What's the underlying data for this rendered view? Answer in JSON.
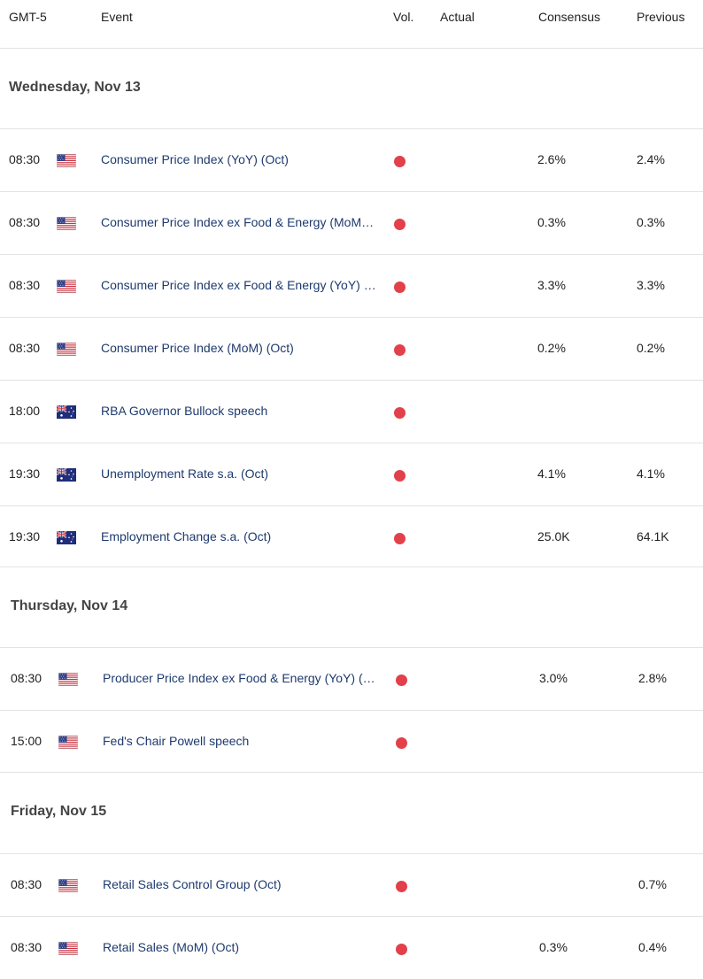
{
  "header": {
    "timezone": "GMT-5",
    "event": "Event",
    "vol": "Vol.",
    "actual": "Actual",
    "consensus": "Consensus",
    "previous": "Previous"
  },
  "days": [
    {
      "label": "Wednesday, Nov 13",
      "events": [
        {
          "time": "08:30",
          "flag": "us",
          "name": "Consumer Price Index (YoY) (Oct)",
          "actual": "",
          "consensus": "2.6%",
          "previous": "2.4%"
        },
        {
          "time": "08:30",
          "flag": "us",
          "name": "Consumer Price Index ex Food & Energy (MoM…",
          "actual": "",
          "consensus": "0.3%",
          "previous": "0.3%"
        },
        {
          "time": "08:30",
          "flag": "us",
          "name": "Consumer Price Index ex Food & Energy (YoY) …",
          "actual": "",
          "consensus": "3.3%",
          "previous": "3.3%"
        },
        {
          "time": "08:30",
          "flag": "us",
          "name": "Consumer Price Index (MoM) (Oct)",
          "actual": "",
          "consensus": "0.2%",
          "previous": "0.2%"
        },
        {
          "time": "18:00",
          "flag": "au",
          "name": "RBA Governor Bullock speech",
          "actual": "",
          "consensus": "",
          "previous": ""
        },
        {
          "time": "19:30",
          "flag": "au",
          "name": "Unemployment Rate s.a. (Oct)",
          "actual": "",
          "consensus": "4.1%",
          "previous": "4.1%"
        },
        {
          "time": "19:30",
          "flag": "au",
          "name": "Employment Change s.a. (Oct)",
          "actual": "",
          "consensus": "25.0K",
          "previous": "64.1K"
        }
      ]
    },
    {
      "label": "Thursday, Nov 14",
      "events": [
        {
          "time": "08:30",
          "flag": "us",
          "name": "Producer Price Index ex Food & Energy (YoY) (…",
          "actual": "",
          "consensus": "3.0%",
          "previous": "2.8%"
        },
        {
          "time": "15:00",
          "flag": "us",
          "name": "Fed's Chair Powell speech",
          "actual": "",
          "consensus": "",
          "previous": ""
        }
      ]
    },
    {
      "label": "Friday, Nov 15",
      "events": [
        {
          "time": "08:30",
          "flag": "us",
          "name": "Retail Sales Control Group (Oct)",
          "actual": "",
          "consensus": "",
          "previous": "0.7%"
        },
        {
          "time": "08:30",
          "flag": "us",
          "name": "Retail Sales (MoM) (Oct)",
          "actual": "",
          "consensus": "0.3%",
          "previous": "0.4%"
        }
      ]
    }
  ],
  "colors": {
    "event_text": "#1e3a6e",
    "volatility_dot": "#e2404b",
    "separator": "#e3e3e3"
  },
  "icons": {
    "us": "us-flag-icon",
    "au": "australia-flag-icon",
    "vol": "high-volatility-dot-icon"
  }
}
